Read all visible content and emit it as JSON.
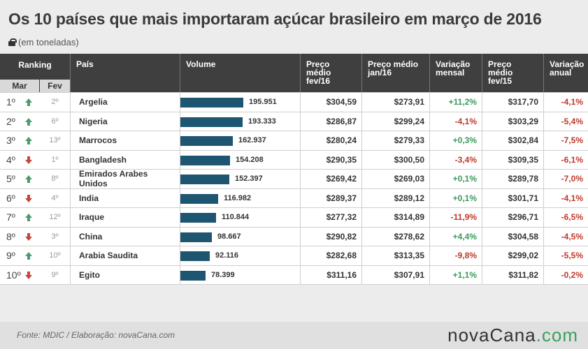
{
  "title": "Os 10 países que mais importaram açúcar brasileiro em março de 2016",
  "subtitle": "(em toneladas)",
  "headers": {
    "ranking": "Ranking",
    "mar": "Mar",
    "fev": "Fev",
    "pais": "País",
    "volume": "Volume",
    "preco_fev16": "Preço médio fev/16",
    "preco_jan16": "Preço médio jan/16",
    "var_mensal": "Variação mensal",
    "preco_fev15": "Preço médio fev/15",
    "var_anual": "Variação anual"
  },
  "colors": {
    "bar": "#1e5570",
    "up": "#4e9a70",
    "down": "#c8453b",
    "positive": "#3a9a5c",
    "negative": "#c0392b"
  },
  "chart_data": {
    "type": "bar",
    "categories": [
      "Argelia",
      "Nigeria",
      "Marrocos",
      "Bangladesh",
      "Emirados Arabes Unidos",
      "India",
      "Iraque",
      "China",
      "Arabia Saudita",
      "Egito"
    ],
    "values": [
      195951,
      193333,
      162937,
      154208,
      152397,
      116982,
      110844,
      98667,
      92116,
      78399
    ],
    "ylabel": "Volume",
    "ylim": [
      0,
      200000
    ]
  },
  "rows": [
    {
      "mar": "1º",
      "trend": "up",
      "fev": "2º",
      "pais": "Argelia",
      "volume_label": "195.951",
      "volume": 195951,
      "preco_fev16": "$304,59",
      "preco_jan16": "$273,91",
      "var_mensal": "+11,2%",
      "var_mensal_sign": "pos",
      "preco_fev15": "$317,70",
      "var_anual": "-4,1%",
      "var_anual_sign": "neg"
    },
    {
      "mar": "2º",
      "trend": "up",
      "fev": "6º",
      "pais": "Nigeria",
      "volume_label": "193.333",
      "volume": 193333,
      "preco_fev16": "$286,87",
      "preco_jan16": "$299,24",
      "var_mensal": "-4,1%",
      "var_mensal_sign": "neg",
      "preco_fev15": "$303,29",
      "var_anual": "-5,4%",
      "var_anual_sign": "neg"
    },
    {
      "mar": "3º",
      "trend": "up",
      "fev": "13º",
      "pais": "Marrocos",
      "volume_label": "162.937",
      "volume": 162937,
      "preco_fev16": "$280,24",
      "preco_jan16": "$279,33",
      "var_mensal": "+0,3%",
      "var_mensal_sign": "pos",
      "preco_fev15": "$302,84",
      "var_anual": "-7,5%",
      "var_anual_sign": "neg"
    },
    {
      "mar": "4º",
      "trend": "down",
      "fev": "1º",
      "pais": "Bangladesh",
      "volume_label": "154.208",
      "volume": 154208,
      "preco_fev16": "$290,35",
      "preco_jan16": "$300,50",
      "var_mensal": "-3,4%",
      "var_mensal_sign": "neg",
      "preco_fev15": "$309,35",
      "var_anual": "-6,1%",
      "var_anual_sign": "neg"
    },
    {
      "mar": "5º",
      "trend": "up",
      "fev": "8º",
      "pais": "Emirados Arabes Unidos",
      "volume_label": "152.397",
      "volume": 152397,
      "preco_fev16": "$269,42",
      "preco_jan16": "$269,03",
      "var_mensal": "+0,1%",
      "var_mensal_sign": "pos",
      "preco_fev15": "$289,78",
      "var_anual": "-7,0%",
      "var_anual_sign": "neg"
    },
    {
      "mar": "6º",
      "trend": "down",
      "fev": "4º",
      "pais": "India",
      "volume_label": "116.982",
      "volume": 116982,
      "preco_fev16": "$289,37",
      "preco_jan16": "$289,12",
      "var_mensal": "+0,1%",
      "var_mensal_sign": "pos",
      "preco_fev15": "$301,71",
      "var_anual": "-4,1%",
      "var_anual_sign": "neg"
    },
    {
      "mar": "7º",
      "trend": "up",
      "fev": "12º",
      "pais": "Iraque",
      "volume_label": "110.844",
      "volume": 110844,
      "preco_fev16": "$277,32",
      "preco_jan16": "$314,89",
      "var_mensal": "-11,9%",
      "var_mensal_sign": "neg",
      "preco_fev15": "$296,71",
      "var_anual": "-6,5%",
      "var_anual_sign": "neg"
    },
    {
      "mar": "8º",
      "trend": "down",
      "fev": "3º",
      "pais": "China",
      "volume_label": "98.667",
      "volume": 98667,
      "preco_fev16": "$290,82",
      "preco_jan16": "$278,62",
      "var_mensal": "+4,4%",
      "var_mensal_sign": "pos",
      "preco_fev15": "$304,58",
      "var_anual": "-4,5%",
      "var_anual_sign": "neg"
    },
    {
      "mar": "9º",
      "trend": "up",
      "fev": "10º",
      "pais": "Arabia Saudita",
      "volume_label": "92.116",
      "volume": 92116,
      "preco_fev16": "$282,68",
      "preco_jan16": "$313,35",
      "var_mensal": "-9,8%",
      "var_mensal_sign": "neg",
      "preco_fev15": "$299,02",
      "var_anual": "-5,5%",
      "var_anual_sign": "neg"
    },
    {
      "mar": "10º",
      "trend": "down",
      "fev": "9º",
      "pais": "Egito",
      "volume_label": "78.399",
      "volume": 78399,
      "preco_fev16": "$311,16",
      "preco_jan16": "$307,91",
      "var_mensal": "+1,1%",
      "var_mensal_sign": "pos",
      "preco_fev15": "$311,82",
      "var_anual": "-0,2%",
      "var_anual_sign": "neg"
    }
  ],
  "footer": {
    "source": "Fonte: MDIC  / Elaboração: novaCana.com",
    "logo_main": "novaCana",
    "logo_accent": ".com"
  }
}
